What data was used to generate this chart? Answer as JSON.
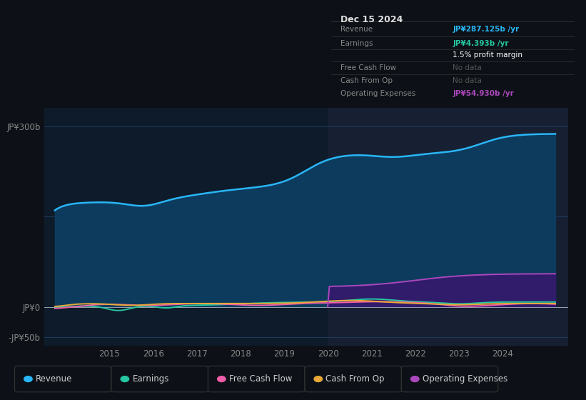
{
  "bg_color": "#0d1117",
  "plot_bg_color": "#0d1b2a",
  "grid_color": "#1e3a5f",
  "ylim": [
    -65,
    330
  ],
  "ytick_positions": [
    -50,
    0,
    300
  ],
  "ytick_labels": [
    "-JP¥50b",
    "JP¥0",
    "JP¥300b"
  ],
  "xlim": [
    2013.5,
    2025.5
  ],
  "xticks": [
    2015,
    2016,
    2017,
    2018,
    2019,
    2020,
    2021,
    2022,
    2023,
    2024
  ],
  "series": {
    "revenue": {
      "color": "#29b6f6",
      "fill_color": "#0d3b5e",
      "label": "Revenue"
    },
    "earnings": {
      "color": "#26c6a0",
      "label": "Earnings"
    },
    "free_cash_flow": {
      "color": "#ef5da8",
      "label": "Free Cash Flow"
    },
    "cash_from_op": {
      "color": "#e8a838",
      "label": "Cash From Op"
    },
    "operating_expenses": {
      "color": "#ab47bc",
      "fill_color": "#311b6b",
      "label": "Operating Expenses"
    }
  },
  "legend": {
    "items": [
      {
        "label": "Revenue",
        "color": "#29b6f6"
      },
      {
        "label": "Earnings",
        "color": "#26c6a0"
      },
      {
        "label": "Free Cash Flow",
        "color": "#ef5da8"
      },
      {
        "label": "Cash From Op",
        "color": "#e8a838"
      },
      {
        "label": "Operating Expenses",
        "color": "#ab47bc"
      }
    ]
  },
  "highlight_x_start": 2020.0,
  "highlight_color": "#162032",
  "info_box": {
    "date": "Dec 15 2024",
    "rows": [
      {
        "label": "Revenue",
        "value": "JP¥287.125b /yr",
        "value_color": "#29b6f6"
      },
      {
        "label": "Earnings",
        "value": "JP¥4.393b /yr",
        "value_color": "#26c6a0"
      },
      {
        "label": "",
        "value": "1.5% profit margin",
        "value_color": "#ffffff"
      },
      {
        "label": "Free Cash Flow",
        "value": "No data",
        "value_color": "#555555"
      },
      {
        "label": "Cash From Op",
        "value": "No data",
        "value_color": "#555555"
      },
      {
        "label": "Operating Expenses",
        "value": "JP¥54.930b /yr",
        "value_color": "#ab47bc"
      }
    ]
  }
}
